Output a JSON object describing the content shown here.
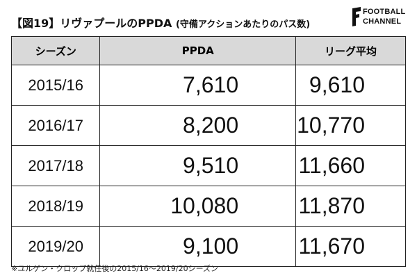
{
  "header": {
    "title": "【図19】リヴァプールのPPDA",
    "subtitle": "(守備アクションあたりのパス数)",
    "logo": [
      "FOOTBALL",
      "CHANNEL"
    ]
  },
  "table": {
    "columns": [
      "シーズン",
      "PPDA",
      "リーグ平均"
    ],
    "rows": [
      [
        "2015/16",
        "7,610",
        "9,610"
      ],
      [
        "2016/17",
        "8,200",
        "10,770"
      ],
      [
        "2017/18",
        "9,510",
        "11,660"
      ],
      [
        "2018/19",
        "10,080",
        "11,870"
      ],
      [
        "2019/20",
        "9,100",
        "11,670"
      ]
    ]
  },
  "footnote": "※ユルゲン・クロップ就任後の2015/16〜2019/20シーズン"
}
